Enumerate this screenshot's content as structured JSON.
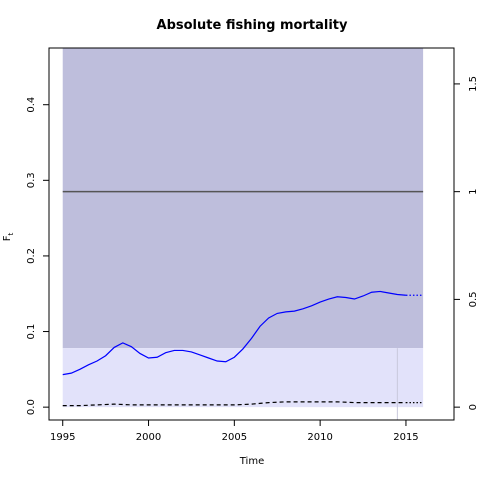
{
  "chart_data": {
    "type": "line",
    "title": "Absolute fishing mortality",
    "xlabel": "Time",
    "ylabel": "F",
    "ylabel_subscript": "t",
    "xlim": [
      1994.2,
      2017.8
    ],
    "ylim": [
      -0.017,
      0.475
    ],
    "x_ticks": [
      1995,
      2000,
      2005,
      2010,
      2015
    ],
    "y_ticks": [
      0.0,
      0.1,
      0.2,
      0.3,
      0.4
    ],
    "y_tick_labels": [
      "0.0",
      "0.1",
      "0.2",
      "0.3",
      "0.4"
    ],
    "right_axis": {
      "ticks": [
        0,
        0.5,
        1,
        1.5
      ],
      "tick_labels": [
        "0",
        "0.5",
        "1",
        "1.5"
      ],
      "scale_factor": 0.285
    },
    "grid": false,
    "bands": [
      {
        "name": "upper-band",
        "x_range": [
          1995,
          2016
        ],
        "y_range": [
          0.078,
          0.475
        ],
        "color": "#bebedc"
      },
      {
        "name": "lower-band",
        "x_range": [
          1995,
          2016
        ],
        "y_range": [
          0.0,
          0.078
        ],
        "color": "#e2e2fa"
      }
    ],
    "reference_line": {
      "y": 0.285,
      "x_range": [
        1995,
        2016
      ],
      "color": "#555555"
    },
    "vertical_marker": {
      "x": 2014.5,
      "y_range": [
        -0.017,
        0.078
      ],
      "color": "#c8c8dc"
    },
    "series": [
      {
        "style": "solid",
        "color": "#0000ff",
        "x": [
          1995,
          1995.5,
          1996,
          1996.5,
          1997,
          1997.5,
          1998,
          1998.5,
          1999,
          1999.5,
          2000,
          2000.5,
          2001,
          2001.5,
          2002,
          2002.5,
          2003,
          2003.5,
          2004,
          2004.5,
          2005,
          2005.5,
          2006,
          2006.5,
          2007,
          2007.5,
          2008,
          2008.5,
          2009,
          2009.5,
          2010,
          2010.5,
          2011,
          2011.5,
          2012,
          2012.5,
          2013,
          2013.5,
          2014,
          2014.5,
          2015
        ],
        "y": [
          0.043,
          0.045,
          0.05,
          0.056,
          0.061,
          0.068,
          0.079,
          0.085,
          0.08,
          0.071,
          0.065,
          0.066,
          0.072,
          0.075,
          0.075,
          0.073,
          0.069,
          0.065,
          0.061,
          0.06,
          0.066,
          0.077,
          0.091,
          0.107,
          0.118,
          0.124,
          0.126,
          0.127,
          0.13,
          0.134,
          0.139,
          0.143,
          0.146,
          0.145,
          0.143,
          0.147,
          0.152,
          0.153,
          0.151,
          0.149,
          0.148
        ]
      },
      {
        "style": "dotted",
        "color": "#0000ff",
        "x": [
          2015,
          2016
        ],
        "y": [
          0.148,
          0.148
        ]
      },
      {
        "style": "dashed",
        "color": "#000000",
        "x": [
          1995,
          1996,
          1997,
          1998,
          1999,
          2000,
          2001,
          2002,
          2003,
          2004,
          2005,
          2006,
          2007,
          2008,
          2009,
          2010,
          2011,
          2012,
          2013,
          2014,
          2015
        ],
        "y": [
          0.002,
          0.002,
          0.003,
          0.004,
          0.003,
          0.003,
          0.003,
          0.003,
          0.003,
          0.003,
          0.003,
          0.004,
          0.006,
          0.007,
          0.007,
          0.007,
          0.007,
          0.006,
          0.006,
          0.006,
          0.006
        ]
      },
      {
        "style": "dotted",
        "color": "#000000",
        "x": [
          2015,
          2016
        ],
        "y": [
          0.006,
          0.006
        ]
      }
    ]
  }
}
